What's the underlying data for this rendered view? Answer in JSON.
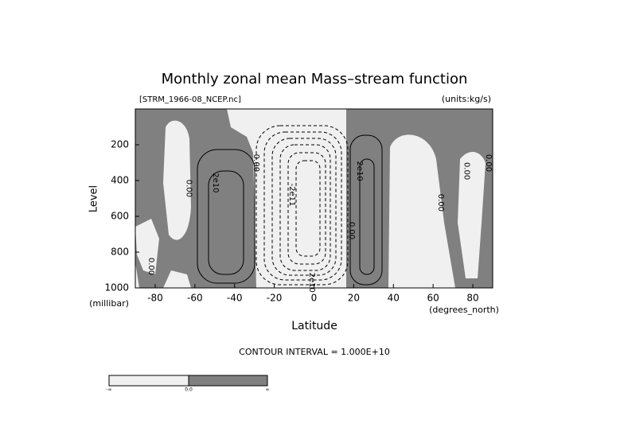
{
  "chart_data": {
    "type": "contour",
    "title": "Monthly zonal mean Mass–stream function",
    "subtitle_left": "[STRM_1966-08_NCEP.nc]",
    "subtitle_right": "(units:kg/s)",
    "x_label": "Latitude",
    "x_unit": "(degrees_north)",
    "y_label": "Level",
    "y_unit": "(millibar)",
    "footer": "CONTOUR INTERVAL = 1.000E+10",
    "xlim": [
      -90,
      90
    ],
    "ylim": [
      1000,
      0
    ],
    "xticks": [
      -80,
      -60,
      -40,
      -20,
      0,
      20,
      40,
      60,
      80
    ],
    "yticks": [
      200,
      400,
      600,
      800,
      1000
    ],
    "contour_labels": [
      {
        "label": "0.00",
        "x": -63,
        "y": 444
      },
      {
        "label": "2e10",
        "x": -49.5,
        "y": 413
      },
      {
        "label": "0.00",
        "x": -29,
        "y": 302
      },
      {
        "label": "-2e11",
        "x": -11,
        "y": 480
      },
      {
        "label": "2e10",
        "x": 23,
        "y": 347
      },
      {
        "label": "0.00",
        "x": 19,
        "y": 680
      },
      {
        "label": "0.00",
        "x": 64,
        "y": 524
      },
      {
        "label": "0.00",
        "x": 77,
        "y": 347
      },
      {
        "label": "0.00",
        "x": 88,
        "y": 302
      },
      {
        "label": "0.00",
        "x": -82,
        "y": 880
      },
      {
        "label": "2e10",
        "x": -1,
        "y": 970
      }
    ],
    "colorbar_labels": [
      "-∞",
      "0.0",
      "∞"
    ]
  }
}
